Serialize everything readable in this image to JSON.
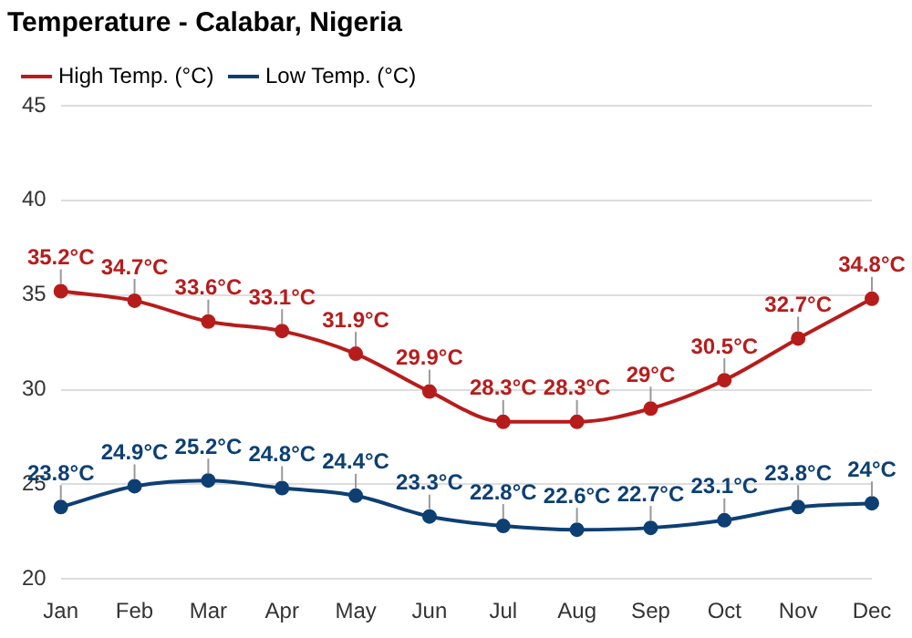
{
  "chart_data": {
    "type": "line",
    "title": "Temperature - Calabar, Nigeria",
    "categories": [
      "Jan",
      "Feb",
      "Mar",
      "Apr",
      "May",
      "Jun",
      "Jul",
      "Aug",
      "Sep",
      "Oct",
      "Nov",
      "Dec"
    ],
    "series": [
      {
        "name": "High Temp. (°C)",
        "color": "#b71c1c",
        "values": [
          35.2,
          34.7,
          33.6,
          33.1,
          31.9,
          29.9,
          28.3,
          28.3,
          29,
          30.5,
          32.7,
          34.8
        ],
        "value_labels": [
          "35.2°C",
          "34.7°C",
          "33.6°C",
          "33.1°C",
          "31.9°C",
          "29.9°C",
          "28.3°C",
          "28.3°C",
          "29°C",
          "30.5°C",
          "32.7°C",
          "34.8°C"
        ]
      },
      {
        "name": "Low Temp. (°C)",
        "color": "#0d3f73",
        "values": [
          23.8,
          24.9,
          25.2,
          24.8,
          24.4,
          23.3,
          22.8,
          22.6,
          22.7,
          23.1,
          23.8,
          24
        ],
        "value_labels": [
          "23.8°C",
          "24.9°C",
          "25.2°C",
          "24.8°C",
          "24.4°C",
          "23.3°C",
          "22.8°C",
          "22.6°C",
          "22.7°C",
          "23.1°C",
          "23.8°C",
          "24°C"
        ]
      }
    ],
    "ylim": [
      20,
      45
    ],
    "yticks": [
      20,
      25,
      30,
      35,
      40,
      45
    ],
    "grid": "y",
    "legend": "top left",
    "marker": "circle",
    "line_style": "solid"
  }
}
